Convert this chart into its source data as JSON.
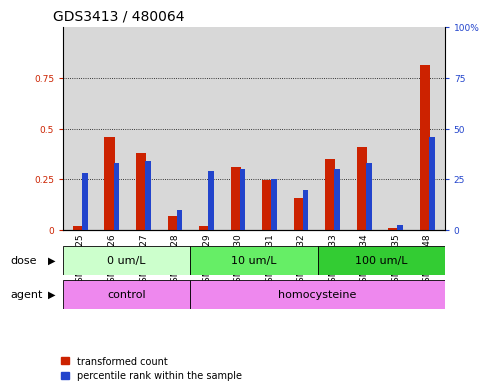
{
  "title": "GDS3413 / 480064",
  "samples": [
    "GSM240525",
    "GSM240526",
    "GSM240527",
    "GSM240528",
    "GSM240529",
    "GSM240530",
    "GSM240531",
    "GSM240532",
    "GSM240533",
    "GSM240534",
    "GSM240535",
    "GSM240848"
  ],
  "red_values": [
    0.02,
    0.46,
    0.38,
    0.07,
    0.02,
    0.31,
    0.245,
    0.16,
    0.35,
    0.41,
    0.01,
    0.81
  ],
  "blue_values": [
    28,
    33,
    34,
    10,
    29,
    30,
    25,
    20,
    30,
    33,
    2.5,
    46
  ],
  "red_color": "#cc2200",
  "blue_color": "#2244cc",
  "ylim_left": [
    0,
    1.0
  ],
  "ylim_right": [
    0,
    100
  ],
  "yticks_left": [
    0,
    0.25,
    0.5,
    0.75
  ],
  "yticks_right": [
    0,
    25,
    50,
    75,
    100
  ],
  "ytick_labels_left": [
    "0",
    "0.25",
    "0.5",
    "0.75"
  ],
  "ytick_labels_right": [
    "0",
    "25",
    "50",
    "75",
    "100%"
  ],
  "dose_groups": [
    {
      "label": "0 um/L",
      "start": 0,
      "end": 4,
      "color": "#ccffcc"
    },
    {
      "label": "10 um/L",
      "start": 4,
      "end": 8,
      "color": "#66ee66"
    },
    {
      "label": "100 um/L",
      "start": 8,
      "end": 12,
      "color": "#33cc33"
    }
  ],
  "agent_color": "#ee88ee",
  "legend_red": "transformed count",
  "legend_blue": "percentile rank within the sample",
  "plot_bg_color": "#d8d8d8",
  "title_fontsize": 10,
  "tick_fontsize": 6.5,
  "label_fontsize": 8
}
